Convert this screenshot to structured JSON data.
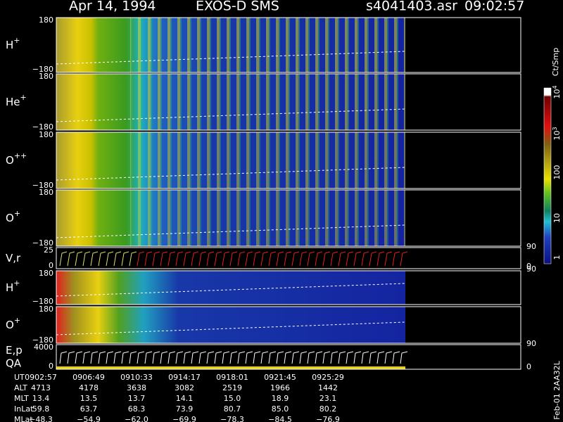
{
  "header": {
    "date": "Apr 14, 1994",
    "instrument": "EXOS-D SMS",
    "file": "s4041403.asr",
    "time": "09:02:57"
  },
  "panels": [
    {
      "name": "H",
      "charge": "+",
      "top": "180",
      "bottom": "−180"
    },
    {
      "name": "He",
      "charge": "+",
      "top": "180",
      "bottom": "−180"
    },
    {
      "name": "O",
      "charge": "++",
      "top": "180",
      "bottom": "−180"
    },
    {
      "name": "O",
      "charge": "+",
      "top": "180",
      "bottom": "−180",
      "right_top": "90"
    },
    {
      "name": "V,r",
      "top": "25",
      "bottom": "0",
      "right_top": "90",
      "right_bottom": "0"
    },
    {
      "name": "H",
      "charge": "+",
      "top": "180",
      "bottom": "−180"
    },
    {
      "name": "O",
      "charge": "+",
      "top": "180",
      "bottom": "−180",
      "right_top": "90"
    },
    {
      "name": "E,p",
      "name2": "QA",
      "top": "4000",
      "bottom": "0",
      "right_bottom": "0"
    }
  ],
  "colorbar": {
    "unit": "Ct/Smp",
    "labels": [
      {
        "base": "10",
        "exp": "4"
      },
      {
        "base": "10",
        "exp": "3"
      },
      {
        "base": "100"
      },
      {
        "base": "10"
      },
      {
        "base": "1"
      }
    ]
  },
  "table": {
    "rows": [
      {
        "label": "UT",
        "values": [
          "0902:57",
          "0906:49",
          "0910:33",
          "0914:17",
          "0918:01",
          "0921:45",
          "0925:29"
        ]
      },
      {
        "label": "ALT",
        "values": [
          "4713",
          "4178",
          "3638",
          "3082",
          "2519",
          "1966",
          "1442"
        ]
      },
      {
        "label": "MLT",
        "values": [
          "13.4",
          "13.5",
          "13.7",
          "14.1",
          "15.0",
          "18.9",
          "23.1"
        ]
      },
      {
        "label": "InLat",
        "values": [
          "59.8",
          "63.7",
          "68.3",
          "73.9",
          "80.7",
          "85.0",
          "80.2"
        ]
      },
      {
        "label": "MLat",
        "values": [
          "−48.3",
          "−54.9",
          "−62.0",
          "−69.9",
          "−78.3",
          "−84.5",
          "−76.9"
        ]
      }
    ]
  },
  "footer": "Feb-01 2AA32L"
}
